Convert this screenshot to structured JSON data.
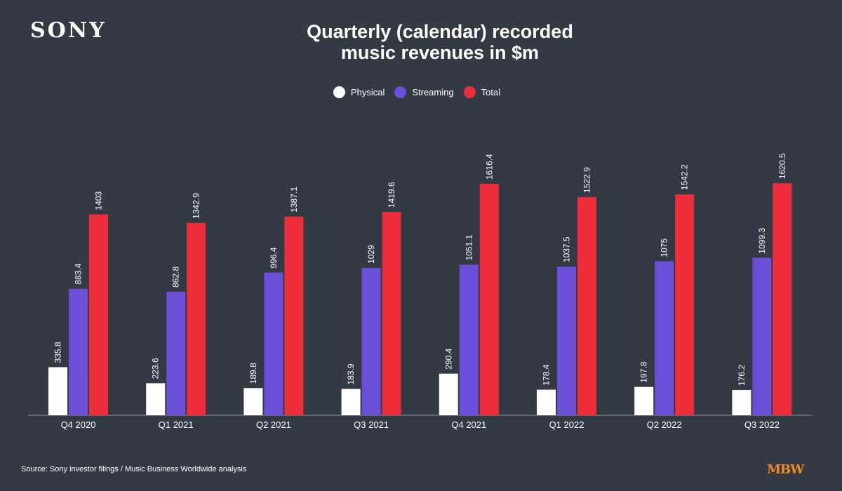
{
  "brand": "SONY",
  "title_lines": [
    "Quarterly (calendar) recorded",
    "music revenues in $m"
  ],
  "source": "Source: Sony investor filings / Music Business Worldwide analysis",
  "logo": "MBW",
  "colors": {
    "background": "#333a43",
    "physical": "#ffffff",
    "streaming": "#6b4fd8",
    "total": "#ee2d3a",
    "logo": "#f08a24"
  },
  "chart_data": {
    "type": "bar",
    "title": "Quarterly (calendar) recorded music revenues in $m",
    "xlabel": "",
    "ylabel": "",
    "ylim": [
      0,
      1800
    ],
    "grid": false,
    "legend_position": "top-center",
    "categories": [
      "Q4 2020",
      "Q1 2021",
      "Q2 2021",
      "Q3 2021",
      "Q4 2021",
      "Q1 2022",
      "Q2 2022",
      "Q3 2022"
    ],
    "series": [
      {
        "name": "Physical",
        "color": "#ffffff",
        "values": [
          335.8,
          223.6,
          189.8,
          183.9,
          290.4,
          178.4,
          197.8,
          176.2
        ]
      },
      {
        "name": "Streaming",
        "color": "#6b4fd8",
        "values": [
          883.4,
          862.8,
          996.4,
          1029,
          1051.1,
          1037.5,
          1075,
          1099.3
        ]
      },
      {
        "name": "Total",
        "color": "#ee2d3a",
        "values": [
          1403,
          1342.9,
          1387.1,
          1419.6,
          1616.4,
          1522.9,
          1542.2,
          1620.5
        ]
      }
    ]
  }
}
